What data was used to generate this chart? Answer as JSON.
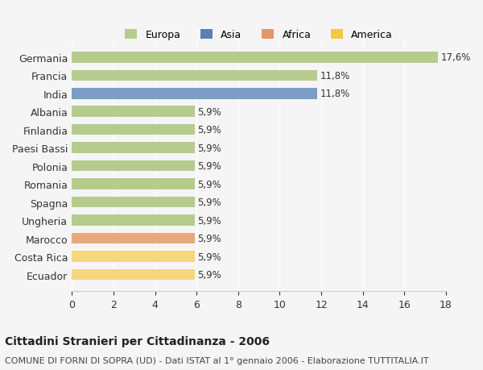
{
  "categories": [
    "Germania",
    "Francia",
    "India",
    "Albania",
    "Finlandia",
    "Paesi Bassi",
    "Polonia",
    "Romania",
    "Spagna",
    "Ungheria",
    "Marocco",
    "Costa Rica",
    "Ecuador"
  ],
  "values": [
    17.6,
    11.8,
    11.8,
    5.9,
    5.9,
    5.9,
    5.9,
    5.9,
    5.9,
    5.9,
    5.9,
    5.9,
    5.9
  ],
  "labels": [
    "17,6%",
    "11,8%",
    "11,8%",
    "5,9%",
    "5,9%",
    "5,9%",
    "5,9%",
    "5,9%",
    "5,9%",
    "5,9%",
    "5,9%",
    "5,9%",
    "5,9%"
  ],
  "continents": [
    "Europa",
    "Europa",
    "Asia",
    "Europa",
    "Europa",
    "Europa",
    "Europa",
    "Europa",
    "Europa",
    "Europa",
    "Africa",
    "America",
    "America"
  ],
  "colors": {
    "Europa": "#b5cc8e",
    "Asia": "#7b9dc7",
    "Africa": "#e8a87c",
    "America": "#f5d77e"
  },
  "legend_colors": {
    "Europa": "#b5cc8e",
    "Asia": "#5b7fb5",
    "Africa": "#e8956a",
    "America": "#f5c842"
  },
  "xlim": [
    0,
    18
  ],
  "xticks": [
    0,
    2,
    4,
    6,
    8,
    10,
    12,
    14,
    16,
    18
  ],
  "title": "Cittadini Stranieri per Cittadinanza - 2006",
  "subtitle": "COMUNE DI FORNI DI SOPRA (UD) - Dati ISTAT al 1° gennaio 2006 - Elaborazione TUTTITALIA.IT",
  "bg_color": "#f5f5f5",
  "bar_height": 0.6,
  "label_fontsize": 8.5,
  "title_fontsize": 10,
  "subtitle_fontsize": 8,
  "ytick_fontsize": 9,
  "xtick_fontsize": 9,
  "legend_fontsize": 9
}
